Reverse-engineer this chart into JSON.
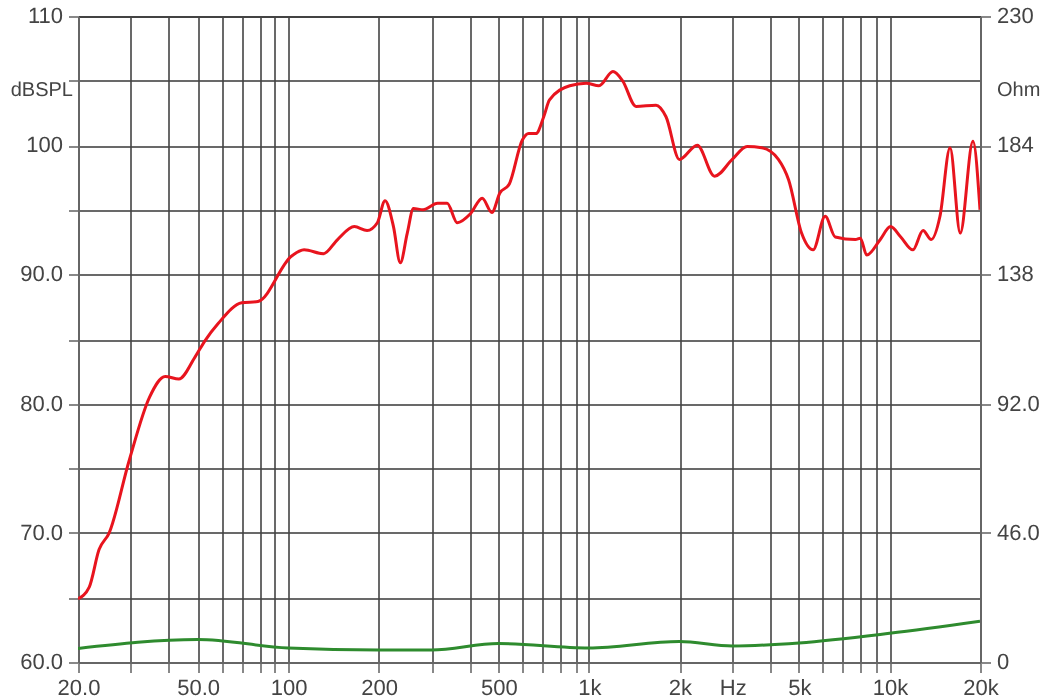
{
  "chart_data": {
    "type": "line",
    "xlabel": null,
    "ylabel": "dBSPL",
    "y2label": "Ohm",
    "log": "x",
    "grid": true,
    "x": [
      20,
      21.8,
      23.5,
      25.4,
      29.6,
      34.6,
      39,
      43.3,
      49,
      53,
      58.5,
      70.1,
      79.3,
      102.5,
      113,
      131,
      146,
      166,
      183,
      198,
      210,
      224,
      236,
      249,
      261,
      281,
      314,
      338,
      365,
      404,
      442,
      476,
      506,
      544,
      601,
      631,
      667,
      708,
      740,
      864,
      980,
      1081,
      1203,
      1294,
      1436,
      1673,
      1806,
      2001,
      2294,
      2620,
      3000,
      3361,
      3760,
      4270,
      4620,
      5100,
      5570,
      6110,
      6600,
      7700,
      8000,
      8400,
      9320,
      10080,
      10900,
      11960,
      12930,
      13760,
      14720,
      15900,
      17190,
      18950,
      20000
    ],
    "series": [
      {
        "color": "#e8141e",
        "values": [
          64.9,
          65.8,
          68.7,
          70.0,
          75.6,
          80.5,
          82.1,
          81.9,
          83.6,
          84.9,
          86.2,
          87.8,
          87.9,
          91.4,
          91.9,
          91.6,
          92.7,
          93.7,
          93.4,
          94.0,
          95.7,
          93.7,
          90.9,
          93.2,
          95.1,
          95.0,
          95.5,
          95.5,
          94.0,
          94.7,
          95.9,
          94.8,
          96.3,
          97.0,
          100.4,
          100.9,
          100.9,
          102.2,
          103.5,
          104.6,
          104.8,
          104.6,
          105.7,
          105.0,
          103.0,
          103.1,
          102.2,
          98.9,
          100.0,
          97.6,
          98.9,
          99.9,
          99.8,
          98.9,
          97.3,
          93.2,
          91.9,
          94.5,
          92.9,
          92.7,
          92.8,
          91.5,
          92.7,
          93.7,
          92.9,
          91.9,
          93.4,
          92.7,
          94.5,
          99.8,
          93.2,
          100.3,
          95.0
        ]
      },
      {
        "color": "#2e8b2e",
        "axis": "y2",
        "x": [
          20,
          50,
          100,
          200,
          300,
          500,
          1000,
          2000,
          3000,
          5000,
          10000,
          20000
        ],
        "values": [
          4.8,
          8.0,
          5.0,
          4.3,
          4.3,
          6.6,
          5.0,
          7.3,
          5.7,
          6.8,
          10.2,
          14.5
        ]
      }
    ],
    "xlim": [
      20,
      20000
    ],
    "xticks": [
      {
        "value": 20,
        "label": "20.0"
      },
      {
        "value": 30,
        "label": null
      },
      {
        "value": 40,
        "label": null
      },
      {
        "value": 50,
        "label": "50.0"
      },
      {
        "value": 60,
        "label": null
      },
      {
        "value": 70,
        "label": null
      },
      {
        "value": 80,
        "label": null
      },
      {
        "value": 90,
        "label": null
      },
      100,
      200,
      {
        "value": 300,
        "label": null
      },
      {
        "value": 400,
        "label": null
      },
      500,
      {
        "value": 600,
        "label": null
      },
      {
        "value": 700,
        "label": null
      },
      {
        "value": 800,
        "label": null
      },
      {
        "value": 900,
        "label": null
      },
      {
        "value": 1000,
        "label": "1k"
      },
      {
        "value": 2000,
        "label": "2k"
      },
      {
        "value": 3000,
        "label": "Hz"
      },
      {
        "value": 4000,
        "label": null
      },
      {
        "value": 5000,
        "label": "5k"
      },
      {
        "value": 6000,
        "label": null
      },
      {
        "value": 7000,
        "label": null
      },
      {
        "value": 8000,
        "label": null
      },
      {
        "value": 9000,
        "label": null
      },
      {
        "value": 10000,
        "label": "10k"
      },
      {
        "value": 20000,
        "label": "20k"
      }
    ],
    "ylim": [
      60,
      110
    ],
    "yticks": [
      {
        "value": 60,
        "label": "60.0"
      },
      {
        "value": 65,
        "label": null
      },
      {
        "value": 70,
        "label": "70.0"
      },
      {
        "value": 75,
        "label": null
      },
      {
        "value": 80,
        "label": "80.0"
      },
      {
        "value": 85,
        "label": null
      },
      {
        "value": 90,
        "label": "90.0"
      },
      {
        "value": 95,
        "label": null
      },
      100,
      {
        "value": 105,
        "label": null
      },
      110
    ],
    "y2lim": [
      0,
      230
    ],
    "y2ticks": [
      0,
      {
        "value": 46,
        "label": "46.0"
      },
      {
        "value": 92,
        "label": "92.0"
      },
      138,
      184,
      230
    ]
  }
}
